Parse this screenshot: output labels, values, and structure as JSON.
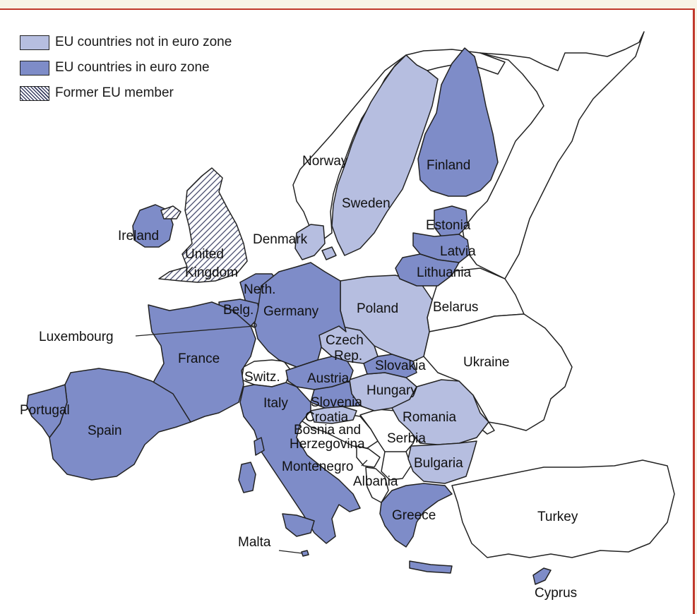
{
  "legend": {
    "not_in_euro": "EU countries not in euro zone",
    "in_euro": "EU countries in euro zone",
    "former": "Former EU member"
  },
  "colors": {
    "euro_zone": "#7e8cc8",
    "eu_not_euro": "#b6bee0",
    "non_eu": "#ffffff",
    "frame": "#c0392b"
  },
  "countries": {
    "norway": "Norway",
    "sweden": "Sweden",
    "finland": "Finland",
    "estonia": "Estonia",
    "latvia": "Latvia",
    "lithuania": "Lithuania",
    "belarus": "Belarus",
    "denmark": "Denmark",
    "ireland": "Ireland",
    "uk_line1": "United",
    "uk_line2": "Kingdom",
    "neth": "Neth.",
    "belg": "Belg.",
    "germany": "Germany",
    "poland": "Poland",
    "luxembourg": "Luxembourg",
    "france": "France",
    "czech_line1": "Czech",
    "czech_line2": "Rep.",
    "slovakia": "Slovakia",
    "ukraine": "Ukraine",
    "switz": "Switz.",
    "austria": "Austria",
    "hungary": "Hungary",
    "portugal": "Portugal",
    "spain": "Spain",
    "italy": "Italy",
    "slovenia": "Slovenia",
    "croatia": "Croatia",
    "romania": "Romania",
    "bosnia_line1": "Bosnia and",
    "bosnia_line2": "Herzegovina",
    "serbia": "Serbia",
    "montenegro": "Montenegro",
    "bulgaria": "Bulgaria",
    "albania": "Albania",
    "greece": "Greece",
    "turkey": "Turkey",
    "malta": "Malta",
    "cyprus": "Cyprus"
  }
}
